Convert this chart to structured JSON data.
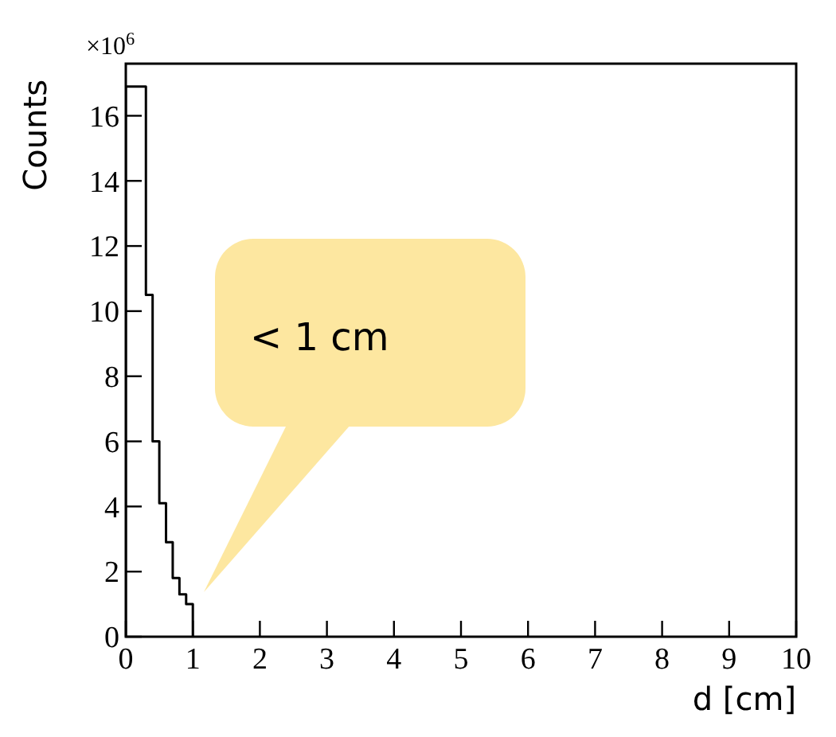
{
  "chart_data": {
    "type": "histogram",
    "xlabel": "d [cm]",
    "ylabel": "Counts",
    "bins": [
      0,
      0.3,
      0.4,
      0.5,
      0.6,
      0.7,
      0.8,
      0.9,
      1.0
    ],
    "values": [
      16.9,
      10.5,
      6.0,
      4.1,
      2.9,
      1.8,
      1.3,
      1.0
    ],
    "color": "#000000",
    "xlim": [
      0,
      10
    ],
    "xticks": [
      0,
      1,
      2,
      3,
      4,
      5,
      6,
      7,
      8,
      9,
      10
    ],
    "ylim": [
      0,
      17.6
    ],
    "yticks": [
      0,
      2,
      4,
      6,
      8,
      10,
      12,
      14,
      16
    ],
    "grid": false,
    "annotations": [
      "×10$^{6}$",
      "< 1 cm"
    ]
  }
}
